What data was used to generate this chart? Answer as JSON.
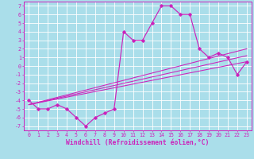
{
  "xlabel": "Windchill (Refroidissement éolien,°C)",
  "bg_color": "#aadeea",
  "line_color": "#cc22bb",
  "grid_color": "#ffffff",
  "xlim": [
    -0.5,
    23.5
  ],
  "ylim": [
    -7.5,
    7.5
  ],
  "xticks": [
    0,
    1,
    2,
    3,
    4,
    5,
    6,
    7,
    8,
    9,
    10,
    11,
    12,
    13,
    14,
    15,
    16,
    17,
    18,
    19,
    20,
    21,
    22,
    23
  ],
  "yticks": [
    -7,
    -6,
    -5,
    -4,
    -3,
    -2,
    -1,
    0,
    1,
    2,
    3,
    4,
    5,
    6,
    7
  ],
  "main_x": [
    0,
    1,
    2,
    3,
    4,
    5,
    6,
    7,
    8,
    9,
    10,
    11,
    12,
    13,
    14,
    15,
    16,
    17,
    18,
    19,
    20,
    21,
    22,
    23
  ],
  "main_y": [
    -4,
    -5,
    -5,
    -4.5,
    -5,
    -6,
    -7,
    -6,
    -5.5,
    -5,
    4,
    3,
    3,
    5,
    7,
    7,
    6,
    6,
    2,
    1,
    1.5,
    1,
    -1,
    0.5
  ],
  "line1_x": [
    0,
    23
  ],
  "line1_y": [
    -4.5,
    0.5
  ],
  "line2_x": [
    0,
    23
  ],
  "line2_y": [
    -4.5,
    1.2
  ],
  "line3_x": [
    0,
    23
  ],
  "line3_y": [
    -4.5,
    2.0
  ],
  "tick_fontsize": 4.8,
  "label_fontsize": 5.8
}
